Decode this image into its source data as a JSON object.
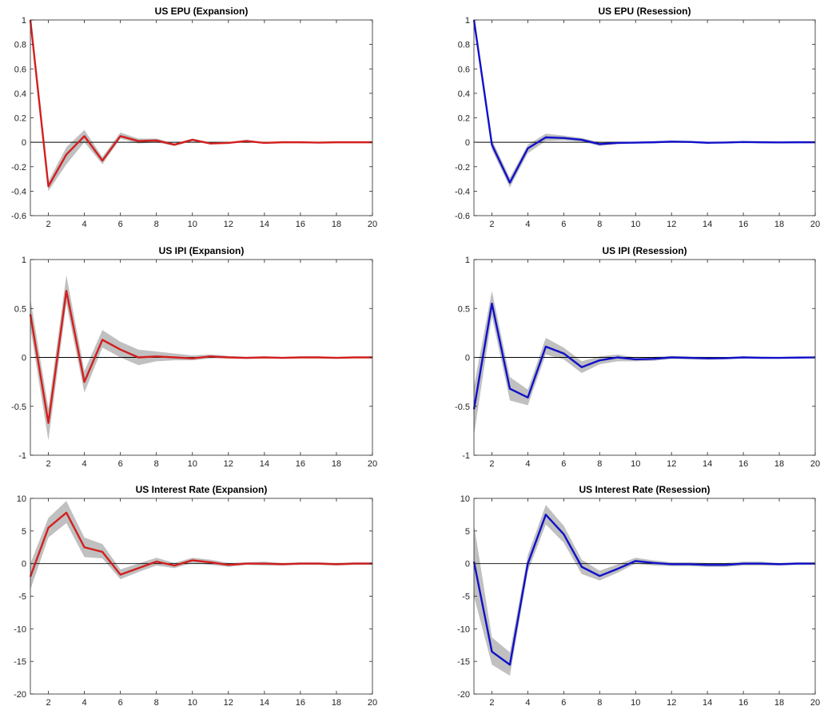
{
  "chart_data": [
    {
      "type": "line",
      "title": "US EPU (Expansion)",
      "x": [
        1,
        2,
        3,
        4,
        5,
        6,
        7,
        8,
        9,
        10,
        11,
        12,
        13,
        14,
        15,
        16,
        17,
        18,
        19,
        20
      ],
      "xticks": [
        2,
        4,
        6,
        8,
        10,
        12,
        14,
        16,
        18,
        20
      ],
      "xlim": [
        1,
        20
      ],
      "ylim": [
        -0.6,
        1
      ],
      "yticks": [
        -0.6,
        -0.4,
        -0.2,
        0,
        0.2,
        0.4,
        0.6,
        0.8,
        1
      ],
      "series": [
        {
          "values": [
            1,
            -0.36,
            -0.1,
            0.05,
            -0.15,
            0.05,
            0.01,
            0.015,
            -0.02,
            0.02,
            -0.01,
            -0.005,
            0.01,
            -0.005,
            0.0,
            0.0,
            -0.003,
            0.0,
            0.0,
            0.0
          ],
          "color": "#d21f1f"
        },
        {
          "values": [
            1,
            -0.4,
            -0.18,
            0.0,
            -0.18,
            0.03,
            -0.01,
            0.0,
            -0.03,
            0.01,
            -0.015,
            -0.01,
            0.0,
            -0.01,
            -0.005,
            -0.005,
            -0.006,
            -0.004,
            -0.003,
            -0.003
          ],
          "role": "band_lower",
          "color": "#c0c0c0"
        },
        {
          "values": [
            1,
            -0.32,
            -0.04,
            0.1,
            -0.12,
            0.08,
            0.03,
            0.03,
            -0.01,
            0.03,
            0.0,
            0.0,
            0.02,
            0.0,
            0.005,
            0.005,
            0.0,
            0.004,
            0.003,
            0.003
          ],
          "role": "band_upper",
          "color": "#c0c0c0"
        }
      ]
    },
    {
      "type": "line",
      "title": "US EPU (Resession)",
      "x": [
        1,
        2,
        3,
        4,
        5,
        6,
        7,
        8,
        9,
        10,
        11,
        12,
        13,
        14,
        15,
        16,
        17,
        18,
        19,
        20
      ],
      "xticks": [
        2,
        4,
        6,
        8,
        10,
        12,
        14,
        16,
        18,
        20
      ],
      "xlim": [
        1,
        20
      ],
      "ylim": [
        -0.6,
        1
      ],
      "yticks": [
        -0.6,
        -0.4,
        -0.2,
        0,
        0.2,
        0.4,
        0.6,
        0.8,
        1
      ],
      "series": [
        {
          "values": [
            1,
            -0.02,
            -0.33,
            -0.05,
            0.04,
            0.035,
            0.02,
            -0.015,
            -0.005,
            -0.003,
            0.0,
            0.005,
            0.003,
            -0.004,
            -0.002,
            0.002,
            0.0,
            -0.001,
            0.0,
            0.0
          ],
          "color": "#1010c8"
        },
        {
          "values": [
            1,
            -0.06,
            -0.37,
            -0.09,
            0.01,
            0.015,
            0.005,
            -0.03,
            -0.015,
            -0.01,
            -0.008,
            -0.003,
            -0.004,
            -0.01,
            -0.008,
            -0.004,
            -0.005,
            -0.005,
            -0.004,
            -0.004
          ],
          "role": "band_lower",
          "color": "#c0c0c0"
        },
        {
          "values": [
            1,
            0.02,
            -0.29,
            -0.02,
            0.07,
            0.055,
            0.035,
            0.0,
            0.005,
            0.004,
            0.007,
            0.012,
            0.01,
            0.002,
            0.004,
            0.008,
            0.005,
            0.003,
            0.004,
            0.004
          ],
          "role": "band_upper",
          "color": "#c0c0c0"
        }
      ]
    },
    {
      "type": "line",
      "title": "US IPI (Expansion)",
      "x": [
        1,
        2,
        3,
        4,
        5,
        6,
        7,
        8,
        9,
        10,
        11,
        12,
        13,
        14,
        15,
        16,
        17,
        18,
        19,
        20
      ],
      "xticks": [
        2,
        4,
        6,
        8,
        10,
        12,
        14,
        16,
        18,
        20
      ],
      "xlim": [
        1,
        20
      ],
      "ylim": [
        -1,
        1
      ],
      "yticks": [
        -1,
        -0.5,
        0,
        0.5,
        1
      ],
      "series": [
        {
          "values": [
            0.44,
            -0.67,
            0.68,
            -0.25,
            0.18,
            0.08,
            0.0,
            0.01,
            0.0,
            -0.01,
            0.01,
            0.0,
            -0.005,
            0.0,
            -0.005,
            0.0,
            0.0,
            -0.005,
            0.0,
            0.0
          ],
          "color": "#d21f1f"
        },
        {
          "values": [
            0.3,
            -0.85,
            0.55,
            -0.36,
            0.1,
            0.0,
            -0.08,
            -0.04,
            -0.03,
            -0.03,
            -0.01,
            -0.01,
            -0.015,
            -0.01,
            -0.012,
            -0.01,
            -0.01,
            -0.012,
            -0.008,
            -0.008
          ],
          "role": "band_lower",
          "color": "#c0c0c0"
        },
        {
          "values": [
            0.6,
            -0.52,
            0.84,
            -0.14,
            0.28,
            0.16,
            0.08,
            0.06,
            0.04,
            0.02,
            0.03,
            0.015,
            0.005,
            0.01,
            0.004,
            0.01,
            0.01,
            0.004,
            0.008,
            0.008
          ],
          "role": "band_upper",
          "color": "#c0c0c0"
        }
      ]
    },
    {
      "type": "line",
      "title": "US IPI (Resession)",
      "x": [
        1,
        2,
        3,
        4,
        5,
        6,
        7,
        8,
        9,
        10,
        11,
        12,
        13,
        14,
        15,
        16,
        17,
        18,
        19,
        20
      ],
      "xticks": [
        2,
        4,
        6,
        8,
        10,
        12,
        14,
        16,
        18,
        20
      ],
      "xlim": [
        1,
        20
      ],
      "ylim": [
        -1,
        1
      ],
      "yticks": [
        -1,
        -0.5,
        0,
        0.5,
        1
      ],
      "series": [
        {
          "values": [
            -0.53,
            0.55,
            -0.32,
            -0.41,
            0.11,
            0.04,
            -0.1,
            -0.03,
            0.0,
            -0.02,
            -0.015,
            0.0,
            -0.005,
            -0.01,
            -0.008,
            0.0,
            -0.004,
            -0.005,
            -0.002,
            0.0
          ],
          "color": "#1010c8"
        },
        {
          "values": [
            -0.8,
            0.42,
            -0.44,
            -0.49,
            0.03,
            -0.02,
            -0.16,
            -0.07,
            -0.04,
            -0.04,
            -0.035,
            -0.015,
            -0.02,
            -0.025,
            -0.02,
            -0.01,
            -0.012,
            -0.012,
            -0.008,
            -0.006
          ],
          "role": "band_lower",
          "color": "#c0c0c0"
        },
        {
          "values": [
            -0.3,
            0.68,
            -0.2,
            -0.33,
            0.2,
            0.1,
            -0.04,
            0.01,
            0.03,
            0.0,
            0.005,
            0.015,
            0.01,
            0.005,
            0.004,
            0.01,
            0.004,
            0.002,
            0.004,
            0.006
          ],
          "role": "band_upper",
          "color": "#c0c0c0"
        }
      ]
    },
    {
      "type": "line",
      "title": "US Interest Rate (Expansion)",
      "x": [
        1,
        2,
        3,
        4,
        5,
        6,
        7,
        8,
        9,
        10,
        11,
        12,
        13,
        14,
        15,
        16,
        17,
        18,
        19,
        20
      ],
      "xticks": [
        2,
        4,
        6,
        8,
        10,
        12,
        14,
        16,
        18,
        20
      ],
      "xlim": [
        1,
        20
      ],
      "ylim": [
        -20,
        10
      ],
      "yticks": [
        -20,
        -15,
        -10,
        -5,
        0,
        5,
        10
      ],
      "series": [
        {
          "values": [
            -2,
            5.5,
            7.8,
            2.5,
            1.8,
            -1.7,
            -0.7,
            0.3,
            -0.3,
            0.5,
            0.2,
            -0.2,
            0.0,
            0.0,
            -0.1,
            0.0,
            0.0,
            -0.1,
            0.0,
            0.0
          ],
          "color": "#d21f1f"
        },
        {
          "values": [
            -4,
            4.0,
            6.2,
            1.0,
            0.8,
            -2.4,
            -1.3,
            -0.3,
            -0.7,
            0.1,
            -0.2,
            -0.5,
            -0.2,
            -0.3,
            -0.3,
            -0.2,
            -0.2,
            -0.3,
            -0.2,
            -0.2
          ],
          "role": "band_lower",
          "color": "#c0c0c0"
        },
        {
          "values": [
            0,
            7.0,
            9.6,
            4.0,
            3.0,
            -0.9,
            0.0,
            0.9,
            0.1,
            0.9,
            0.6,
            0.1,
            0.2,
            0.3,
            0.1,
            0.2,
            0.2,
            0.1,
            0.2,
            0.2
          ],
          "role": "band_upper",
          "color": "#c0c0c0"
        }
      ]
    },
    {
      "type": "line",
      "title": "US Interest Rate (Resession)",
      "x": [
        1,
        2,
        3,
        4,
        5,
        6,
        7,
        8,
        9,
        10,
        11,
        12,
        13,
        14,
        15,
        16,
        17,
        18,
        19,
        20
      ],
      "xticks": [
        2,
        4,
        6,
        8,
        10,
        12,
        14,
        16,
        18,
        20
      ],
      "xlim": [
        1,
        20
      ],
      "ylim": [
        -20,
        10
      ],
      "yticks": [
        -20,
        -15,
        -10,
        -5,
        0,
        5,
        10
      ],
      "series": [
        {
          "values": [
            0.3,
            -13.5,
            -15.5,
            0.0,
            7.5,
            4.5,
            -0.5,
            -1.9,
            -0.8,
            0.4,
            0.1,
            -0.1,
            -0.1,
            -0.2,
            -0.2,
            0.0,
            0.0,
            -0.1,
            0.0,
            0.0
          ],
          "color": "#1010c8"
        },
        {
          "values": [
            -5,
            -15.5,
            -17.2,
            -1.2,
            6.0,
            3.2,
            -1.6,
            -2.6,
            -1.4,
            0.0,
            -0.3,
            -0.4,
            -0.4,
            -0.5,
            -0.5,
            -0.3,
            -0.3,
            -0.3,
            -0.2,
            -0.2
          ],
          "role": "band_lower",
          "color": "#c0c0c0"
        },
        {
          "values": [
            6,
            -11.3,
            -13.6,
            1.3,
            9.0,
            5.8,
            0.6,
            -1.1,
            -0.1,
            0.9,
            0.5,
            0.2,
            0.2,
            0.1,
            0.1,
            0.3,
            0.3,
            0.1,
            0.2,
            0.2
          ],
          "role": "band_upper",
          "color": "#c0c0c0"
        }
      ]
    }
  ]
}
